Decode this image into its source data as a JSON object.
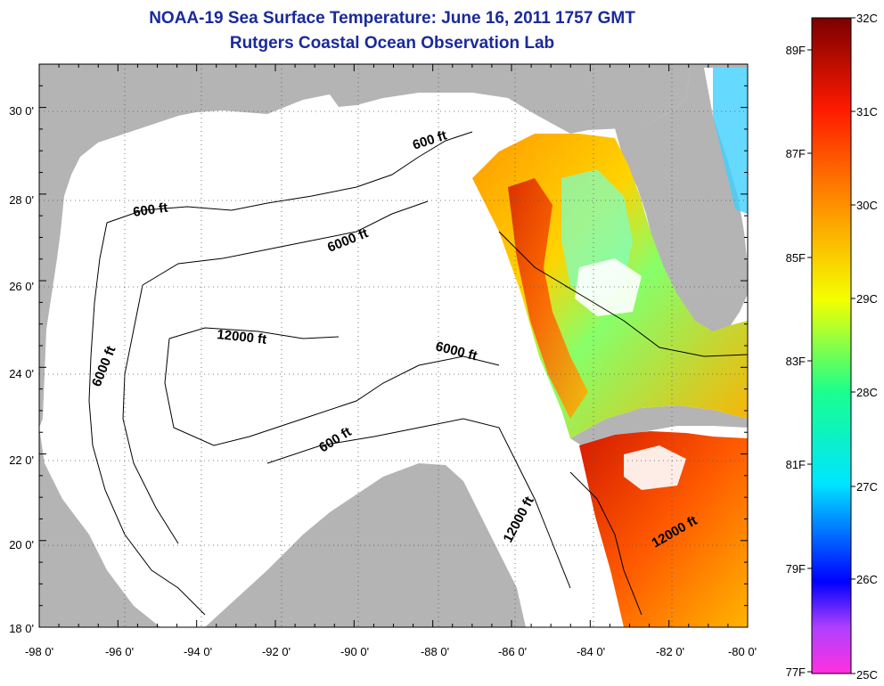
{
  "title": "NOAA-19 Sea Surface Temperature:  June 16, 2011 1757 GMT",
  "subtitle": "Rutgers Coastal Ocean Observation Lab",
  "lon_ticks": [
    "-98 0'",
    "-96 0'",
    "-94 0'",
    "-92 0'",
    "-90 0'",
    "-88 0'",
    "-86 0'",
    "-84 0'",
    "-82 0'",
    "-80 0'"
  ],
  "lat_ticks": [
    "30 0'",
    "28 0'",
    "26 0'",
    "24 0'",
    "22 0'",
    "20 0'",
    "18 0'"
  ],
  "contour_labels": [
    "600 ft",
    "600 ft",
    "6000 ft",
    "12000 ft",
    "6000 ft",
    "6000 ft",
    "600 ft",
    "12000 ft",
    "12000 ft"
  ],
  "colorbar": {
    "celsius": [
      "32C",
      "31C",
      "30C",
      "29C",
      "28C",
      "27C",
      "26C",
      "25C"
    ],
    "fahrenheit": [
      "89F",
      "87F",
      "85F",
      "83F",
      "81F",
      "79F",
      "77F"
    ]
  },
  "colors": {
    "land": "#b4b4b4",
    "title": "#1a2a9a"
  }
}
